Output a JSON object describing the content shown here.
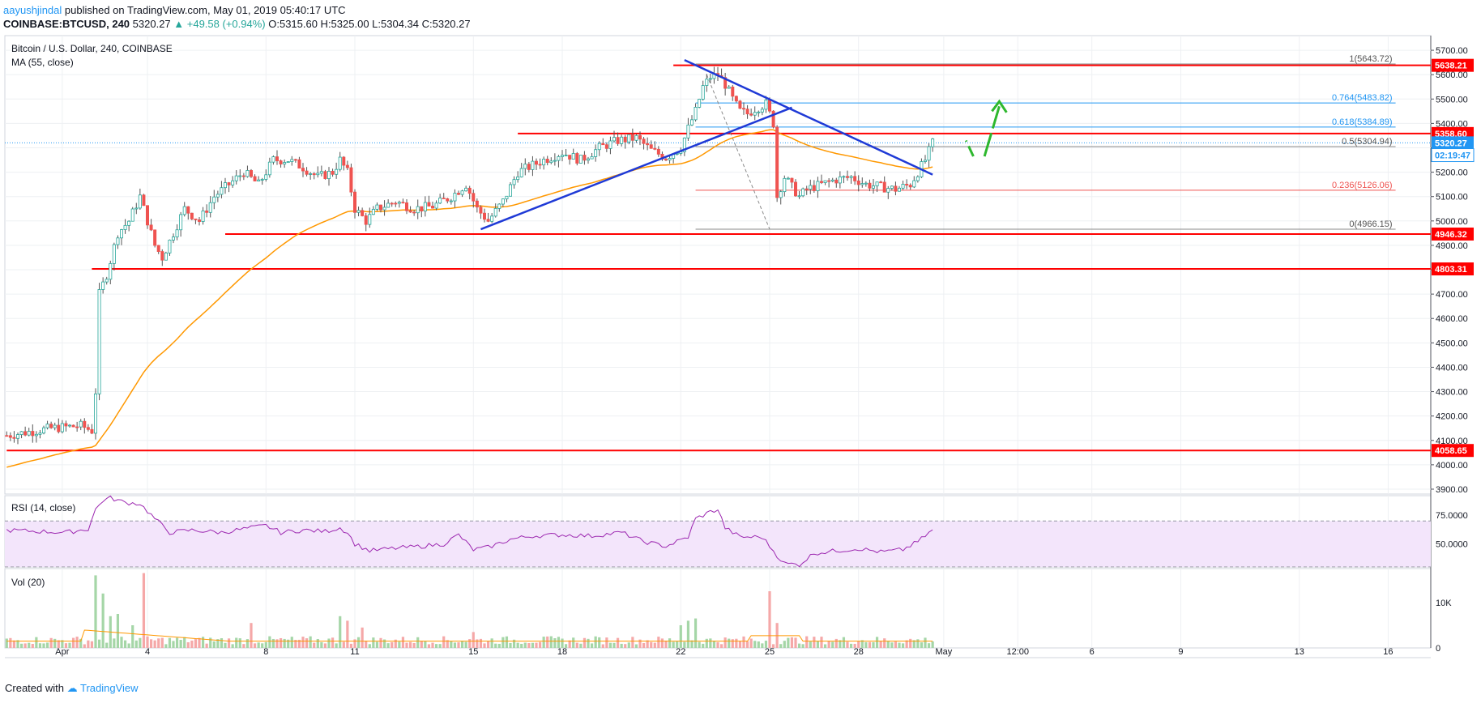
{
  "header": {
    "author": "aayushjindal",
    "published": " published on TradingView.com, May 01, 2019 05:40:17 UTC"
  },
  "quote": {
    "symbol": "COINBASE:BTCUSD, 240",
    "last": "5320.27",
    "change": "▲ +49.58 (+0.94%)",
    "ohlc": "O:5315.60 H:5325.00 L:5304.34 C:5320.27"
  },
  "panel": {
    "title": "Bitcoin / U.S. Dollar, 240, COINBASE",
    "ma_label": "MA (55, close)",
    "rsi_label": "RSI (14, close)",
    "vol_label": "Vol (20)"
  },
  "footer": {
    "created": "Created with",
    "brand": "TradingView"
  },
  "colors": {
    "up": "#26a69a",
    "down": "#ef5350",
    "ma": "#ff9800",
    "trend": "#1f3ad6",
    "level": "#ff0000",
    "fib": "#2196f3",
    "arrow": "#2eb82e"
  },
  "chart_data": {
    "type": "candlestick",
    "title": "Bitcoin / U.S. Dollar, 240, COINBASE",
    "ylim": [
      3880,
      5760
    ],
    "price_ticks": [
      3900,
      4000,
      4100,
      4200,
      4300,
      4400,
      4500,
      4600,
      4700,
      4800,
      4900,
      5000,
      5100,
      5200,
      5300,
      5400,
      5500,
      5600,
      5700
    ],
    "x_ticks": [
      {
        "label": "Apr",
        "slot": 15
      },
      {
        "label": "4",
        "slot": 38
      },
      {
        "label": "8",
        "slot": 70
      },
      {
        "label": "11",
        "slot": 94
      },
      {
        "label": "15",
        "slot": 126
      },
      {
        "label": "18",
        "slot": 150
      },
      {
        "label": "22",
        "slot": 182
      },
      {
        "label": "25",
        "slot": 206
      },
      {
        "label": "28",
        "slot": 230
      },
      {
        "label": "May",
        "slot": 253
      },
      {
        "label": "12:00",
        "slot": 273
      },
      {
        "label": "6",
        "slot": 293
      },
      {
        "label": "9",
        "slot": 317
      },
      {
        "label": "13",
        "slot": 349
      },
      {
        "label": "16",
        "slot": 373
      }
    ],
    "total_slots": 385,
    "series_anchors": [
      [
        0,
        4120
      ],
      [
        4,
        4130
      ],
      [
        8,
        4140
      ],
      [
        12,
        4150
      ],
      [
        16,
        4155
      ],
      [
        20,
        4160
      ],
      [
        23,
        4140
      ],
      [
        24,
        4300
      ],
      [
        25,
        4700
      ],
      [
        27,
        4780
      ],
      [
        30,
        4950
      ],
      [
        33,
        5000
      ],
      [
        36,
        5100
      ],
      [
        38,
        5000
      ],
      [
        40,
        4900
      ],
      [
        42,
        4850
      ],
      [
        45,
        4950
      ],
      [
        48,
        5050
      ],
      [
        52,
        5000
      ],
      [
        56,
        5100
      ],
      [
        60,
        5150
      ],
      [
        64,
        5200
      ],
      [
        68,
        5150
      ],
      [
        72,
        5250
      ],
      [
        76,
        5250
      ],
      [
        80,
        5220
      ],
      [
        84,
        5180
      ],
      [
        88,
        5200
      ],
      [
        90,
        5250
      ],
      [
        92,
        5200
      ],
      [
        94,
        5050
      ],
      [
        97,
        5000
      ],
      [
        100,
        5050
      ],
      [
        105,
        5080
      ],
      [
        110,
        5050
      ],
      [
        115,
        5060
      ],
      [
        120,
        5100
      ],
      [
        124,
        5150
      ],
      [
        127,
        5050
      ],
      [
        130,
        5000
      ],
      [
        134,
        5080
      ],
      [
        138,
        5200
      ],
      [
        145,
        5250
      ],
      [
        150,
        5280
      ],
      [
        155,
        5250
      ],
      [
        160,
        5300
      ],
      [
        165,
        5330
      ],
      [
        170,
        5340
      ],
      [
        174,
        5290
      ],
      [
        178,
        5260
      ],
      [
        182,
        5300
      ],
      [
        184,
        5380
      ],
      [
        186,
        5450
      ],
      [
        188,
        5550
      ],
      [
        190,
        5590
      ],
      [
        192,
        5600
      ],
      [
        194,
        5560
      ],
      [
        196,
        5500
      ],
      [
        198,
        5450
      ],
      [
        200,
        5440
      ],
      [
        202,
        5460
      ],
      [
        205,
        5480
      ],
      [
        207,
        5400
      ],
      [
        208,
        5100
      ],
      [
        210,
        5180
      ],
      [
        212,
        5140
      ],
      [
        214,
        5100
      ],
      [
        216,
        5130
      ],
      [
        220,
        5150
      ],
      [
        224,
        5170
      ],
      [
        228,
        5180
      ],
      [
        232,
        5150
      ],
      [
        236,
        5140
      ],
      [
        240,
        5130
      ],
      [
        244,
        5150
      ],
      [
        246,
        5200
      ],
      [
        248,
        5250
      ],
      [
        250,
        5320
      ]
    ],
    "ma_period": 55,
    "ma_start": 3990,
    "horizontal_levels": [
      {
        "label": "5638.21",
        "value": 5638.21,
        "from_slot": 180
      },
      {
        "label": "5358.60",
        "value": 5358.6,
        "from_slot": 138
      },
      {
        "label": "4946.32",
        "value": 4946.32,
        "from_slot": 59
      },
      {
        "label": "4803.31",
        "value": 4803.31,
        "from_slot": 23
      },
      {
        "label": "4058.65",
        "value": 4058.65,
        "from_slot": 0
      }
    ],
    "fib_levels": [
      {
        "ratio": "1",
        "label": "1(5643.72)",
        "value": 5643.72
      },
      {
        "ratio": "0.764",
        "label": "0.764(5483.82)",
        "value": 5483.82
      },
      {
        "ratio": "0.618",
        "label": "0.618(5384.89)",
        "value": 5384.89
      },
      {
        "ratio": "0.5",
        "label": "0.5(5304.94)",
        "value": 5304.94
      },
      {
        "ratio": "0.236",
        "label": "0.236(5126.06)",
        "value": 5126.06
      },
      {
        "ratio": "0",
        "label": "0(4966.15)",
        "value": 4966.15
      }
    ],
    "fib_from_slot": 186,
    "fib_to_slot": 375,
    "trendlines": [
      {
        "from": [
          128,
          4966
        ],
        "to": [
          212,
          5465
        ]
      },
      {
        "from": [
          183,
          5660
        ],
        "to": [
          250,
          5190
        ]
      }
    ],
    "price_labels": [
      {
        "text": "5638.21",
        "value": 5638.21,
        "kind": "red"
      },
      {
        "text": "5358.60",
        "value": 5358.6,
        "kind": "red"
      },
      {
        "text": "5320.27",
        "value": 5320.27,
        "kind": "blue"
      },
      {
        "text": "02:19:47",
        "value": 5270,
        "kind": "white"
      },
      {
        "text": "4946.32",
        "value": 4946.32,
        "kind": "red"
      },
      {
        "text": "4803.31",
        "value": 4803.31,
        "kind": "red"
      },
      {
        "text": "4058.65",
        "value": 4058.65,
        "kind": "red"
      }
    ],
    "rsi": {
      "ticks": [
        "75.0000",
        "50.0000"
      ],
      "ylim": [
        30,
        92
      ],
      "upper": 70,
      "lower": 30,
      "anchors": [
        [
          0,
          62
        ],
        [
          8,
          61
        ],
        [
          16,
          60
        ],
        [
          22,
          63
        ],
        [
          24,
          80
        ],
        [
          26,
          88
        ],
        [
          28,
          90
        ],
        [
          32,
          86
        ],
        [
          36,
          85
        ],
        [
          40,
          72
        ],
        [
          44,
          60
        ],
        [
          50,
          62
        ],
        [
          58,
          60
        ],
        [
          66,
          64
        ],
        [
          70,
          66
        ],
        [
          74,
          60
        ],
        [
          80,
          62
        ],
        [
          86,
          61
        ],
        [
          90,
          64
        ],
        [
          92,
          60
        ],
        [
          94,
          50
        ],
        [
          98,
          44
        ],
        [
          104,
          46
        ],
        [
          112,
          48
        ],
        [
          118,
          50
        ],
        [
          122,
          58
        ],
        [
          126,
          45
        ],
        [
          130,
          47
        ],
        [
          136,
          54
        ],
        [
          142,
          57
        ],
        [
          150,
          58
        ],
        [
          158,
          57
        ],
        [
          166,
          60
        ],
        [
          172,
          52
        ],
        [
          178,
          48
        ],
        [
          184,
          56
        ],
        [
          186,
          72
        ],
        [
          190,
          78
        ],
        [
          192,
          80
        ],
        [
          194,
          64
        ],
        [
          198,
          56
        ],
        [
          204,
          56
        ],
        [
          208,
          40
        ],
        [
          210,
          33
        ],
        [
          214,
          32
        ],
        [
          218,
          42
        ],
        [
          224,
          44
        ],
        [
          230,
          46
        ],
        [
          236,
          43
        ],
        [
          242,
          45
        ],
        [
          246,
          52
        ],
        [
          250,
          62
        ]
      ]
    },
    "volume": {
      "tick_labels": [
        "10K",
        "0"
      ],
      "ymax": 15000,
      "spikes": [
        {
          "slot": 24,
          "value": 16000
        },
        {
          "slot": 26,
          "value": 12000
        },
        {
          "slot": 28,
          "value": 7000
        },
        {
          "slot": 30,
          "value": 7500
        },
        {
          "slot": 34,
          "value": 5000
        },
        {
          "slot": 37,
          "value": 16500
        },
        {
          "slot": 66,
          "value": 5500
        },
        {
          "slot": 90,
          "value": 7000
        },
        {
          "slot": 92,
          "value": 6000
        },
        {
          "slot": 96,
          "value": 4500
        },
        {
          "slot": 126,
          "value": 3500
        },
        {
          "slot": 182,
          "value": 5000
        },
        {
          "slot": 184,
          "value": 6000
        },
        {
          "slot": 186,
          "value": 6500
        },
        {
          "slot": 206,
          "value": 12500
        },
        {
          "slot": 208,
          "value": 5500
        }
      ]
    }
  }
}
